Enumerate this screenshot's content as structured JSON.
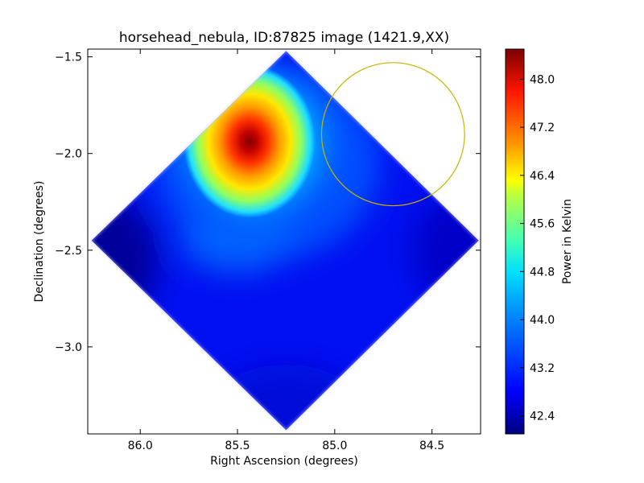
{
  "chart_data": {
    "type": "heatmap",
    "title": "horsehead_nebula, ID:87825 image (1421.9,XX)",
    "xlabel": "Right Ascension (degrees)",
    "ylabel": "Declination (degrees)",
    "x_axis": {
      "range": [
        86.27,
        84.25
      ],
      "inverted": true,
      "ticks": [
        86.0,
        85.5,
        85.0,
        84.5
      ],
      "tick_labels": [
        "86.0",
        "85.5",
        "85.0",
        "84.5"
      ]
    },
    "y_axis": {
      "range": [
        -3.45,
        -1.46
      ],
      "ticks": [
        -1.5,
        -2.0,
        -2.5,
        -3.0
      ],
      "tick_labels": [
        "−1.5",
        "−2.0",
        "−2.5",
        "−3.0"
      ]
    },
    "colorbar": {
      "label": "Power in Kelvin",
      "range": [
        42.1,
        48.5
      ],
      "colormap": "jet",
      "ticks": [
        42.4,
        43.2,
        44.0,
        44.8,
        45.6,
        46.4,
        47.2,
        48.0
      ],
      "tick_labels": [
        "42.4",
        "43.2",
        "44.0",
        "44.8",
        "45.6",
        "46.4",
        "47.2",
        "48.0"
      ]
    },
    "map_footprint": {
      "shape": "diamond",
      "vertices_radec": [
        [
          85.25,
          -1.47
        ],
        [
          84.26,
          -2.45
        ],
        [
          85.25,
          -3.43
        ],
        [
          86.25,
          -2.45
        ]
      ]
    },
    "features": [
      {
        "kind": "peak",
        "ra": 85.48,
        "dec": -1.95,
        "value": 48.3
      },
      {
        "kind": "background_min",
        "ra": 86.2,
        "dec": -2.5,
        "value": 42.1
      }
    ],
    "annotations": [
      {
        "kind": "circle",
        "color": "#c8b400",
        "center_radec": [
          84.7,
          -1.9
        ],
        "radius_deg": 0.37
      }
    ]
  }
}
